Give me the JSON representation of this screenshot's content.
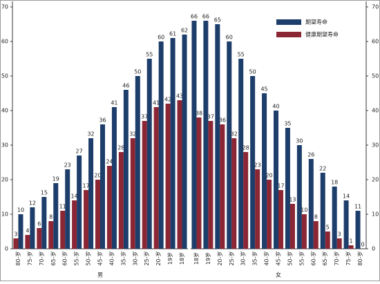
{
  "chart_data": [
    {
      "type": "bar",
      "x_label": "男",
      "categories": [
        "80-岁",
        "75-岁",
        "70-岁",
        "65-岁",
        "60-岁",
        "55-岁",
        "50-岁",
        "45-岁",
        "40-岁",
        "35-岁",
        "30-岁",
        "25-岁",
        "20-岁",
        "19岁",
        "18岁"
      ],
      "series": [
        {
          "color": "#8b2635",
          "values": [
            3,
            4,
            6,
            8,
            11,
            14,
            17,
            20,
            24,
            28,
            32,
            37,
            41,
            42,
            43
          ]
        },
        {
          "color": "#1d3d6b",
          "values": [
            10,
            12,
            15,
            19,
            23,
            27,
            32,
            36,
            41,
            46,
            50,
            55,
            60,
            61,
            62
          ]
        }
      ],
      "ylim": [
        0,
        70
      ],
      "yticks": [
        0,
        10,
        20,
        30,
        40,
        50,
        60,
        70
      ],
      "y_axis_side": "left"
    },
    {
      "type": "bar",
      "x_label": "女",
      "categories": [
        "18岁",
        "19岁",
        "20-岁",
        "25-岁",
        "30-岁",
        "35-岁",
        "40-岁",
        "45-岁",
        "50-岁",
        "55-岁",
        "60-岁",
        "65-岁",
        "70-岁",
        "75-岁",
        "80-岁"
      ],
      "series": [
        {
          "name": "期望寿命",
          "color": "#1d3d6b",
          "values": [
            66,
            66,
            65,
            60,
            55,
            50,
            45,
            40,
            35,
            30,
            26,
            22,
            18,
            14,
            11
          ]
        },
        {
          "name": "健康期望寿命",
          "color": "#8b2635",
          "values": [
            38,
            37,
            36,
            32,
            28,
            23,
            20,
            17,
            13,
            10,
            8,
            5,
            3,
            1,
            0
          ]
        }
      ],
      "ylim": [
        0,
        70
      ],
      "yticks": [
        0,
        10,
        20,
        30,
        40,
        50,
        60,
        70
      ],
      "y_axis_side": "right",
      "legend": "upper right"
    }
  ]
}
